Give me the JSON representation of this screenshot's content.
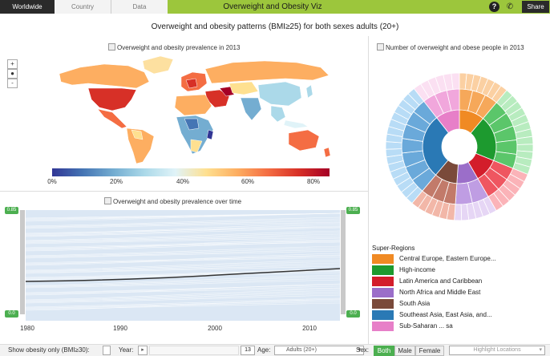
{
  "nav": {
    "crumbs": [
      "Worldwide",
      "Country",
      "Data"
    ],
    "title": "Overweight and Obesity Viz",
    "help": "?",
    "share": "Share"
  },
  "main_title": "Overweight and obesity patterns (BMI≥25) for both sexes adults (20+)",
  "map": {
    "heading": "Overweight and obesity prevalence in 2013",
    "zoom_in": "+",
    "zoom_reset": "●",
    "zoom_out": "-",
    "legend_ticks": [
      "0%",
      "20%",
      "40%",
      "60%",
      "80%"
    ]
  },
  "sunburst": {
    "heading": "Number of overweight and obese people in 2013"
  },
  "timeseries": {
    "heading": "Overweight and obesity prevalence over time",
    "left_top": "0.85",
    "left_bottom": "0.0",
    "right_top": "0.85",
    "right_bottom": "0.0",
    "x_ticks": [
      "1980",
      "1990",
      "2000",
      "2010"
    ]
  },
  "super_regions": {
    "title": "Super-Regions",
    "items": [
      {
        "label": "Central Europe, Eastern Europe...",
        "color": "#f08a24"
      },
      {
        "label": "High-income",
        "color": "#1d9a2f"
      },
      {
        "label": "Latin America and Caribbean",
        "color": "#d31d2b"
      },
      {
        "label": "North Africa and Middle East",
        "color": "#9b6ec9"
      },
      {
        "label": "South Asia",
        "color": "#7a4a3a"
      },
      {
        "label": "Southeast Asia, East Asia, and...",
        "color": "#2a79b5"
      },
      {
        "label": "Sub-Saharan ... sa",
        "color": "#e77fc8"
      }
    ]
  },
  "controls": {
    "show_obesity": "Show obesity only (BMI≥30):",
    "year_label": "Year:",
    "year_value": "13",
    "age_label": "Age:",
    "age_value": "Adults (20+)",
    "sex_label": "Sex:",
    "sex_options": [
      "Both",
      "Male",
      "Female"
    ],
    "highlight": "Highlight Locations"
  }
}
